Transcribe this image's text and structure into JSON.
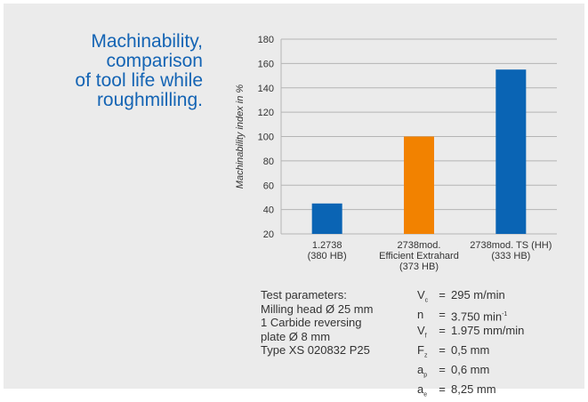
{
  "heading": {
    "lines": [
      "Machinability,",
      "comparison",
      "of tool life while",
      "roughmilling."
    ]
  },
  "chart_data": {
    "type": "bar",
    "ylabel": "Machinability index in %",
    "ylim": [
      20,
      180
    ],
    "yticks": [
      20,
      40,
      60,
      80,
      100,
      120,
      140,
      160,
      180
    ],
    "grid": true,
    "categories": [
      [
        "1.2738",
        "(380 HB)"
      ],
      [
        "2738mod.",
        "Efficient Extrahard",
        "(373 HB)"
      ],
      [
        "2738mod. TS (HH)",
        "(333 HB)"
      ]
    ],
    "values": [
      45,
      100,
      155
    ],
    "colors": [
      "#0a64b4",
      "#f28200",
      "#0a64b4"
    ]
  },
  "test_parameters": {
    "lines": [
      "Test parameters:",
      "Milling head Ø 25 mm",
      "1 Carbide reversing",
      "plate Ø 8 mm",
      "Type XS 020832 P25"
    ],
    "values": [
      {
        "symbol": "V",
        "sub": "c",
        "value": "295 m/min",
        "sup": ""
      },
      {
        "symbol": "n",
        "sub": "",
        "value": "3.750 min",
        "sup": "-1"
      },
      {
        "symbol": "V",
        "sub": "f",
        "value": "1.975 mm/min",
        "sup": ""
      },
      {
        "symbol": "F",
        "sub": "z",
        "value": "0,5 mm",
        "sup": ""
      },
      {
        "symbol": "a",
        "sub": "p",
        "value": "0,6 mm",
        "sup": ""
      },
      {
        "symbol": "a",
        "sub": "e",
        "value": "8,25 mm",
        "sup": ""
      }
    ],
    "equals": "="
  }
}
